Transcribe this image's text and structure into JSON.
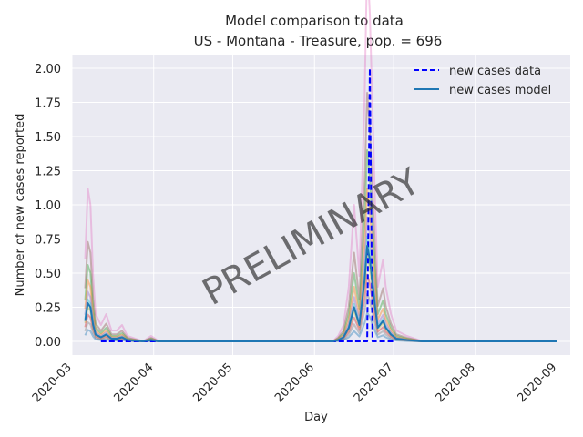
{
  "chart_data": {
    "type": "line",
    "title": "Model comparison to data",
    "subtitle": "US - Montana - Treasure, pop. = 696",
    "xlabel": "Day",
    "ylabel": "Number of new cases reported",
    "watermark": "PRELIMINARY",
    "x_range": [
      "2020-03-01",
      "2020-09-06"
    ],
    "ylim": [
      -0.1,
      2.1
    ],
    "x_ticks": [
      "2020-03",
      "2020-04",
      "2020-05",
      "2020-06",
      "2020-07",
      "2020-08",
      "2020-09"
    ],
    "y_ticks": [
      "0.00",
      "0.25",
      "0.50",
      "0.75",
      "1.00",
      "1.25",
      "1.50",
      "1.75",
      "2.00"
    ],
    "grid": true,
    "legend_position": "top-right",
    "legend": [
      "new cases data",
      "new cases model"
    ],
    "colors": {
      "background": "#eaeaf2",
      "grid": "#ffffff",
      "data": "#0000ff",
      "model": "#1f77b4",
      "ensemble": [
        "#e377c2",
        "#8c564b",
        "#2ca02c",
        "#ff7f0e",
        "#9467bd",
        "#17becf",
        "#bcbd22",
        "#d62728",
        "#7f7f7f",
        "#1f77b4"
      ]
    },
    "series": [
      {
        "name": "new cases data",
        "style": "dashed",
        "points": [
          [
            "2020-03-12",
            0
          ],
          [
            "2020-06-19",
            0
          ],
          [
            "2020-06-20",
            0
          ],
          [
            "2020-06-21",
            0
          ],
          [
            "2020-06-22",
            2
          ],
          [
            "2020-06-23",
            0
          ],
          [
            "2020-06-24",
            0
          ],
          [
            "2020-07-01",
            0
          ]
        ]
      },
      {
        "name": "new cases model",
        "style": "solid",
        "points": [
          [
            "2020-03-06",
            0.15
          ],
          [
            "2020-03-07",
            0.28
          ],
          [
            "2020-03-08",
            0.25
          ],
          [
            "2020-03-09",
            0.12
          ],
          [
            "2020-03-10",
            0.05
          ],
          [
            "2020-03-12",
            0.03
          ],
          [
            "2020-03-14",
            0.05
          ],
          [
            "2020-03-16",
            0.02
          ],
          [
            "2020-03-18",
            0.02
          ],
          [
            "2020-03-20",
            0.03
          ],
          [
            "2020-03-22",
            0.01
          ],
          [
            "2020-03-28",
            0.0
          ],
          [
            "2020-03-31",
            0.01
          ],
          [
            "2020-04-03",
            0.0
          ],
          [
            "2020-06-08",
            0.0
          ],
          [
            "2020-06-10",
            0.01
          ],
          [
            "2020-06-12",
            0.03
          ],
          [
            "2020-06-14",
            0.1
          ],
          [
            "2020-06-16",
            0.25
          ],
          [
            "2020-06-18",
            0.12
          ],
          [
            "2020-06-20",
            0.45
          ],
          [
            "2020-06-21",
            0.7
          ],
          [
            "2020-06-22",
            0.6
          ],
          [
            "2020-06-24",
            0.25
          ],
          [
            "2020-06-25",
            0.1
          ],
          [
            "2020-06-27",
            0.15
          ],
          [
            "2020-06-28",
            0.1
          ],
          [
            "2020-06-30",
            0.05
          ],
          [
            "2020-07-02",
            0.02
          ],
          [
            "2020-07-06",
            0.01
          ],
          [
            "2020-07-12",
            0.0
          ],
          [
            "2020-09-01",
            0.0
          ]
        ]
      }
    ],
    "ensemble_scales": [
      4.0,
      2.6,
      2.0,
      1.6,
      1.3,
      1.1,
      0.9,
      0.7,
      0.5,
      0.3
    ]
  }
}
